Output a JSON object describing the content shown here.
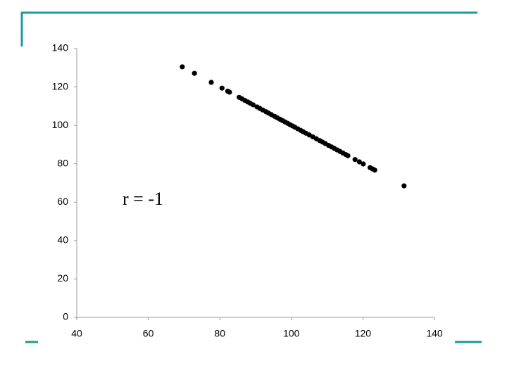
{
  "chart_data": {
    "type": "scatter",
    "annotation": "r = -1",
    "x": [
      69.5,
      72.9,
      77.6,
      80.6,
      82.2,
      82.7,
      85.4,
      86.2,
      87.0,
      87.8,
      88.5,
      89.3,
      90.4,
      91.2,
      92.0,
      92.9,
      93.6,
      94.4,
      95.3,
      96.0,
      96.8,
      97.5,
      98.2,
      98.9,
      99.6,
      100.3,
      101.0,
      101.8,
      102.6,
      103.3,
      104.1,
      105.0,
      106.0,
      107.0,
      107.9,
      108.7,
      109.5,
      110.4,
      111.2,
      112.0,
      112.8,
      113.6,
      114.4,
      115.2,
      115.8,
      117.8,
      119.0,
      120.1,
      122.0,
      122.7,
      123.3,
      131.5
    ],
    "values": [
      130.5,
      127.1,
      122.4,
      119.4,
      117.8,
      117.3,
      114.6,
      113.8,
      113.0,
      112.2,
      111.5,
      110.7,
      109.6,
      108.8,
      108.0,
      107.1,
      106.4,
      105.6,
      104.7,
      104.0,
      103.2,
      102.5,
      101.8,
      101.1,
      100.4,
      99.7,
      99.0,
      98.2,
      97.4,
      96.7,
      95.9,
      95.0,
      94.0,
      93.0,
      92.1,
      91.3,
      90.5,
      89.6,
      88.8,
      88.0,
      87.2,
      86.4,
      85.6,
      84.8,
      84.2,
      82.2,
      81.0,
      79.9,
      78.0,
      77.3,
      76.7,
      68.5
    ],
    "color": "#000000",
    "xlim": [
      40,
      140
    ],
    "xticks": [
      40,
      60,
      80,
      100,
      120,
      140
    ],
    "ylim": [
      0,
      140
    ],
    "yticks": [
      0,
      20,
      40,
      60,
      80,
      100,
      120,
      140
    ],
    "grid": false
  }
}
